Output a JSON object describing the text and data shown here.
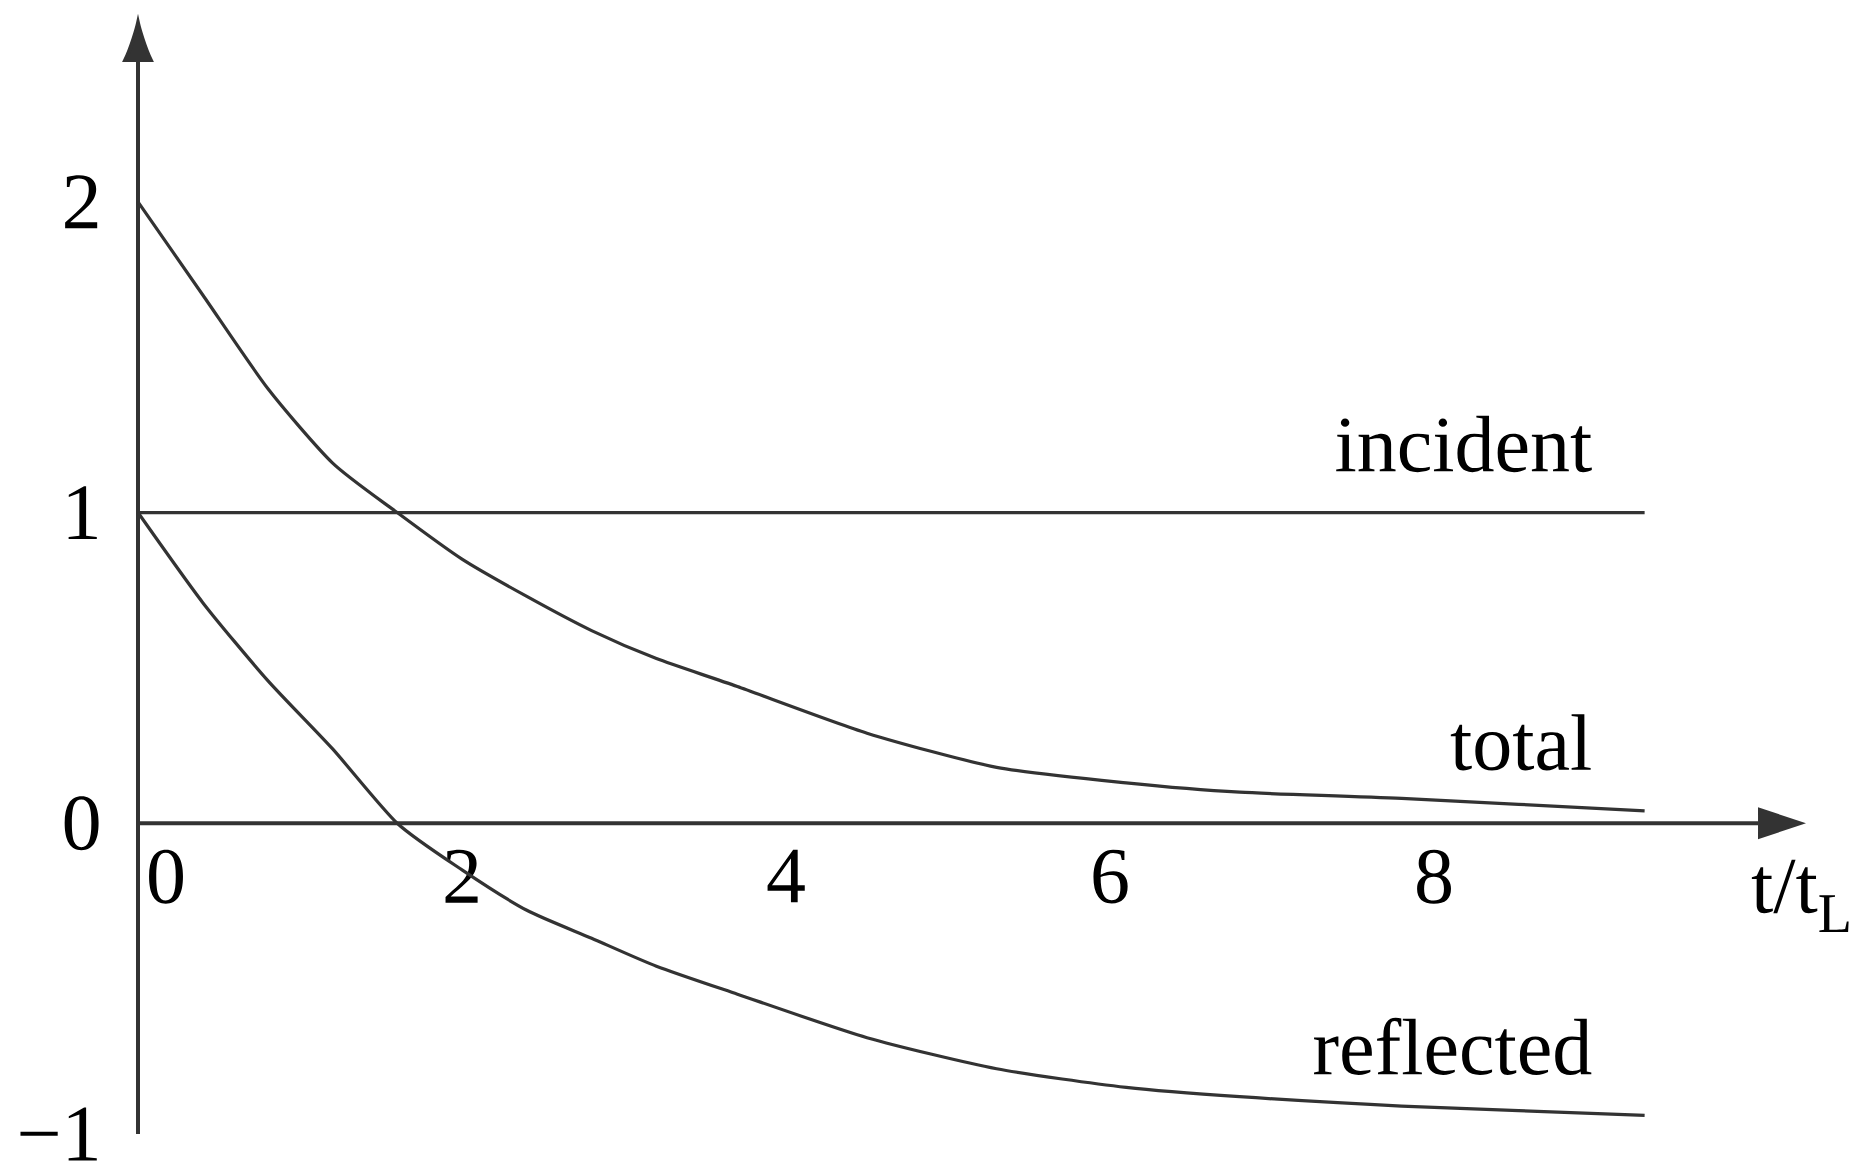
{
  "chart_data": {
    "type": "line",
    "xlabel": "t/t$_{L}$",
    "x": [
      0,
      0.4,
      0.8,
      1.2,
      1.6,
      2.0,
      2.4,
      2.8,
      3.2,
      3.7,
      4.5,
      5.3,
      6.1,
      6.8,
      7.8,
      9.3
    ],
    "series": [
      {
        "name": "incident",
        "color": "#333333",
        "x": [
          0,
          9.3
        ],
        "values": [
          1,
          1
        ]
      },
      {
        "name": "total",
        "color": "#333333",
        "values": [
          2.0,
          1.7,
          1.4,
          1.16,
          1.0,
          0.85,
          0.73,
          0.62,
          0.53,
          0.44,
          0.29,
          0.18,
          0.13,
          0.1,
          0.08,
          0.04
        ]
      },
      {
        "name": "reflected",
        "color": "#333333",
        "values": [
          1.0,
          0.71,
          0.46,
          0.24,
          0.0,
          -0.15,
          -0.28,
          -0.37,
          -0.46,
          -0.55,
          -0.69,
          -0.79,
          -0.85,
          -0.88,
          -0.91,
          -0.94
        ]
      }
    ],
    "xlim": [
      0,
      10
    ],
    "ylim": [
      -1,
      2.45
    ],
    "xticks": [
      0,
      2,
      4,
      6,
      8
    ],
    "yticks": [
      {
        "value": -1,
        "label": "−1"
      },
      0,
      1,
      2
    ],
    "marker": "none",
    "line_style": "solid"
  }
}
